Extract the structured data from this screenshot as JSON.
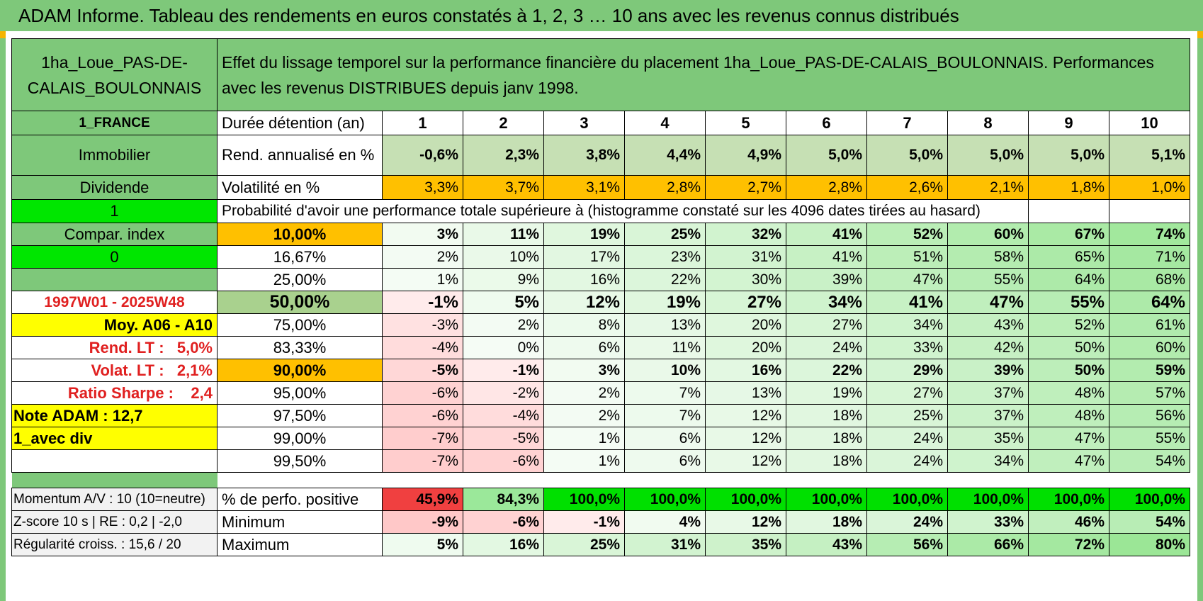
{
  "title": "ADAM Informe. Tableau des rendements en euros constatés à 1, 2, 3 … 10 ans avec les revenus connus distribués",
  "left": {
    "placement": "1ha_Loue_PAS-DE-CALAIS_BOULONNAIS",
    "country": "1_FRANCE",
    "category": "Immobilier",
    "type": "Dividende",
    "index_value": "1",
    "compar_index": "Compar. index",
    "index_flag": "0",
    "period": "1997W01 - 2025W48",
    "moy": "Moy. A06 - A10",
    "rend_lt": "Rend. LT :   5,0%",
    "volat_lt": "Volat. LT :   2,1%",
    "sharpe": "Ratio Sharpe :    2,4",
    "note": "Note ADAM : 12,7",
    "avec_div": "1_avec div"
  },
  "description": "Effet du lissage temporel sur la performance financière du placement 1ha_Loue_PAS-DE-CALAIS_BOULONNAIS. Performances avec les revenus DISTRIBUES depuis janv 1998.",
  "header": {
    "label": "Durée détention (an)",
    "years": [
      "1",
      "2",
      "3",
      "4",
      "5",
      "6",
      "7",
      "8",
      "9",
      "10"
    ]
  },
  "rendement": {
    "label": "Rend. annualisé en %",
    "values": [
      "-0,6%",
      "2,3%",
      "3,8%",
      "4,4%",
      "4,9%",
      "5,0%",
      "5,0%",
      "5,0%",
      "5,0%",
      "5,1%"
    ]
  },
  "volatilite": {
    "label": "Volatilité en %",
    "values": [
      "3,3%",
      "3,7%",
      "3,1%",
      "2,8%",
      "2,7%",
      "2,8%",
      "2,6%",
      "2,1%",
      "1,8%",
      "1,0%"
    ]
  },
  "prob_title": "Probabilité d'avoir une performance totale supérieure à (histogramme constaté sur les 4096 dates tirées au hasard)",
  "prob_rows": [
    {
      "pct": "10,00%",
      "values": [
        "3%",
        "11%",
        "19%",
        "25%",
        "32%",
        "41%",
        "52%",
        "60%",
        "67%",
        "74%"
      ]
    },
    {
      "pct": "16,67%",
      "values": [
        "2%",
        "10%",
        "17%",
        "23%",
        "31%",
        "41%",
        "51%",
        "58%",
        "65%",
        "71%"
      ]
    },
    {
      "pct": "25,00%",
      "values": [
        "1%",
        "9%",
        "16%",
        "22%",
        "30%",
        "39%",
        "47%",
        "55%",
        "64%",
        "68%"
      ]
    },
    {
      "pct": "50,00%",
      "values": [
        "-1%",
        "5%",
        "12%",
        "19%",
        "27%",
        "34%",
        "41%",
        "47%",
        "55%",
        "64%"
      ]
    },
    {
      "pct": "75,00%",
      "values": [
        "-3%",
        "2%",
        "8%",
        "13%",
        "20%",
        "27%",
        "34%",
        "43%",
        "52%",
        "61%"
      ]
    },
    {
      "pct": "83,33%",
      "values": [
        "-4%",
        "0%",
        "6%",
        "11%",
        "20%",
        "24%",
        "33%",
        "42%",
        "50%",
        "60%"
      ]
    },
    {
      "pct": "90,00%",
      "values": [
        "-5%",
        "-1%",
        "3%",
        "10%",
        "16%",
        "22%",
        "29%",
        "39%",
        "50%",
        "59%"
      ]
    },
    {
      "pct": "95,00%",
      "values": [
        "-6%",
        "-2%",
        "2%",
        "7%",
        "13%",
        "19%",
        "27%",
        "37%",
        "48%",
        "57%"
      ]
    },
    {
      "pct": "97,50%",
      "values": [
        "-6%",
        "-4%",
        "2%",
        "7%",
        "12%",
        "18%",
        "25%",
        "37%",
        "48%",
        "56%"
      ]
    },
    {
      "pct": "99,00%",
      "values": [
        "-7%",
        "-5%",
        "1%",
        "6%",
        "12%",
        "18%",
        "24%",
        "35%",
        "47%",
        "55%"
      ]
    },
    {
      "pct": "99,50%",
      "values": [
        "-7%",
        "-6%",
        "1%",
        "6%",
        "12%",
        "18%",
        "24%",
        "34%",
        "47%",
        "54%"
      ]
    }
  ],
  "stats": {
    "momentum": "Momentum A/V : 10 (10=neutre)",
    "zscore": "Z-score 10 s | RE : 0,2 | -2,0",
    "regularite": "Régularité croiss. : 15,6 / 20",
    "positive": {
      "label": "% de perfo. positive",
      "values": [
        "45,9%",
        "84,3%",
        "100,0%",
        "100,0%",
        "100,0%",
        "100,0%",
        "100,0%",
        "100,0%",
        "100,0%",
        "100,0%"
      ]
    },
    "minimum": {
      "label": "Minimum",
      "values": [
        "-9%",
        "-6%",
        "-1%",
        "4%",
        "12%",
        "18%",
        "24%",
        "33%",
        "46%",
        "54%"
      ]
    },
    "maximum": {
      "label": "Maximum",
      "values": [
        "5%",
        "16%",
        "25%",
        "31%",
        "35%",
        "43%",
        "56%",
        "66%",
        "72%",
        "80%"
      ]
    }
  }
}
